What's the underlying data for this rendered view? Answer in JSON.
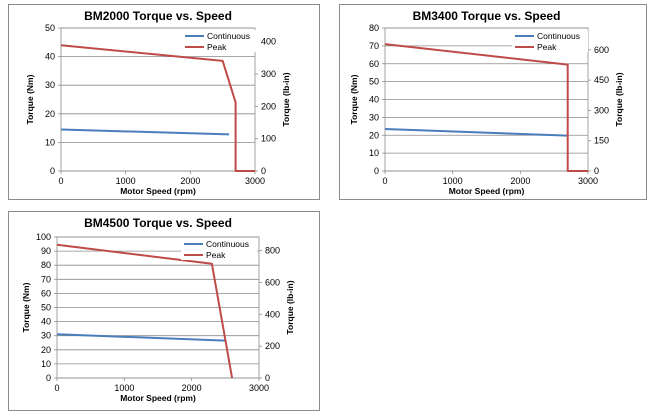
{
  "chart_data": [
    {
      "type": "line",
      "title": "BM2000 Torque vs. Speed",
      "xlabel": "Motor Speed (rpm)",
      "ylabel": "Torque (Nm)",
      "y2label": "Torque (lb-in)",
      "xlim": [
        0,
        3000
      ],
      "ylim": [
        0,
        50
      ],
      "y2lim": [
        0,
        442.5
      ],
      "xticks": [
        0,
        1000,
        2000,
        3000
      ],
      "yticks": [
        0,
        10,
        20,
        30,
        40,
        50
      ],
      "y2ticks": [
        0,
        100,
        200,
        300,
        400
      ],
      "legend_position": "top-right",
      "series": [
        {
          "name": "Continuous",
          "color": "#4a7ebb",
          "x": [
            0,
            2600
          ],
          "y": [
            14.5,
            12.8
          ]
        },
        {
          "name": "Peak",
          "color": "#be4b48",
          "x": [
            0,
            2500,
            2700,
            2700,
            3000
          ],
          "y": [
            44,
            38.5,
            24,
            0,
            0
          ]
        }
      ]
    },
    {
      "type": "line",
      "title": "BM3400 Torque vs. Speed",
      "xlabel": "Motor Speed (rpm)",
      "ylabel": "Torque (Nm)",
      "y2label": "Torque (lb-in)",
      "xlim": [
        0,
        3000
      ],
      "ylim": [
        0,
        80
      ],
      "y2lim": [
        0,
        708
      ],
      "xticks": [
        0,
        1000,
        2000,
        3000
      ],
      "yticks": [
        0,
        10,
        20,
        30,
        40,
        50,
        60,
        70,
        80
      ],
      "y2ticks": [
        0,
        150,
        300,
        450,
        600
      ],
      "legend_position": "top-right",
      "series": [
        {
          "name": "Continuous",
          "color": "#4a7ebb",
          "x": [
            0,
            2700
          ],
          "y": [
            23.5,
            19.8
          ]
        },
        {
          "name": "Peak",
          "color": "#be4b48",
          "x": [
            0,
            2700,
            2700,
            3000
          ],
          "y": [
            71,
            59.5,
            0,
            0
          ]
        }
      ]
    },
    {
      "type": "line",
      "title": "BM4500 Torque vs. Speed",
      "xlabel": "Motor Speed (rpm)",
      "ylabel": "Torque (Nm)",
      "y2label": "Torque (lb-in)",
      "xlim": [
        0,
        3000
      ],
      "ylim": [
        0,
        100
      ],
      "y2lim": [
        0,
        885
      ],
      "xticks": [
        0,
        1000,
        2000,
        3000
      ],
      "yticks": [
        0,
        10,
        20,
        30,
        40,
        50,
        60,
        70,
        80,
        90,
        100
      ],
      "y2ticks": [
        0,
        200,
        400,
        600,
        800
      ],
      "legend_position": "top-right",
      "series": [
        {
          "name": "Continuous",
          "color": "#4a7ebb",
          "x": [
            0,
            2500
          ],
          "y": [
            31,
            26.5
          ]
        },
        {
          "name": "Peak",
          "color": "#be4b48",
          "x": [
            0,
            2300,
            2600
          ],
          "y": [
            94.5,
            81,
            0
          ]
        }
      ]
    }
  ]
}
